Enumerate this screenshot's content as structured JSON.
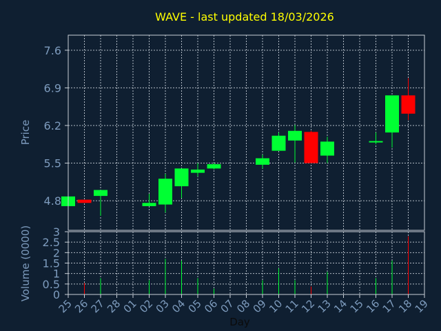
{
  "chart_data": {
    "type": "candlestick",
    "title": "WAVE - last updated 18/03/2026",
    "xlabel": "Day",
    "price_label": "Price",
    "volume_label": "Volume (0000)",
    "x_ticks": [
      "25",
      "26",
      "27",
      "28",
      "01",
      "02",
      "03",
      "04",
      "05",
      "06",
      "07",
      "08",
      "09",
      "10",
      "11",
      "12",
      "13",
      "14",
      "15",
      "16",
      "17",
      "18",
      "19"
    ],
    "price_ticks": [
      "4.8",
      "5.5",
      "6.2",
      "6.9",
      "7.6"
    ],
    "price_range": [
      4.25,
      7.88
    ],
    "volume_ticks": [
      "0",
      "0.5",
      "1",
      "1.5",
      "2",
      "2.5",
      "3"
    ],
    "volume_range": [
      0,
      3
    ],
    "grid": true,
    "colors": {
      "up": "#00ff33",
      "down": "#ff0000",
      "grid": "#d0d8e0",
      "axis": "#7d9bbd",
      "title": "#ffff00",
      "plot_bg": "#0f1f31"
    },
    "candles": [
      {
        "day": "25",
        "open": 4.7,
        "high": 4.9,
        "low": 4.7,
        "close": 4.88,
        "volume": 0.0
      },
      {
        "day": "26",
        "open": 4.82,
        "high": 4.82,
        "low": 4.76,
        "close": 4.76,
        "volume": 0.55
      },
      {
        "day": "27",
        "open": 4.89,
        "high": 5.0,
        "low": 4.52,
        "close": 5.0,
        "volume": 0.78
      },
      {
        "day": "02",
        "open": 4.7,
        "high": 4.93,
        "low": 4.7,
        "close": 4.76,
        "volume": 0.68
      },
      {
        "day": "03",
        "open": 4.73,
        "high": 5.3,
        "low": 4.58,
        "close": 5.21,
        "volume": 1.7
      },
      {
        "day": "04",
        "open": 5.07,
        "high": 5.4,
        "low": 4.85,
        "close": 5.4,
        "volume": 1.62
      },
      {
        "day": "05",
        "open": 5.32,
        "high": 5.5,
        "low": 5.25,
        "close": 5.38,
        "volume": 0.78
      },
      {
        "day": "06",
        "open": 5.4,
        "high": 5.5,
        "low": 5.38,
        "close": 5.48,
        "volume": 0.28
      },
      {
        "day": "09",
        "open": 5.47,
        "high": 5.66,
        "low": 5.4,
        "close": 5.59,
        "volume": 0.68
      },
      {
        "day": "10",
        "open": 5.73,
        "high": 6.07,
        "low": 5.73,
        "close": 6.01,
        "volume": 1.25
      },
      {
        "day": "11",
        "open": 5.92,
        "high": 6.21,
        "low": 5.51,
        "close": 6.1,
        "volume": 0.68
      },
      {
        "day": "12",
        "open": 6.08,
        "high": 6.1,
        "low": 5.5,
        "close": 5.5,
        "volume": 0.38
      },
      {
        "day": "13",
        "open": 5.64,
        "high": 5.99,
        "low": 5.5,
        "close": 5.9,
        "volume": 1.08
      },
      {
        "day": "16",
        "open": 5.9,
        "high": 6.07,
        "low": 5.85,
        "close": 5.91,
        "volume": 0.78
      },
      {
        "day": "17",
        "open": 6.07,
        "high": 6.76,
        "low": 5.79,
        "close": 6.76,
        "volume": 1.62
      },
      {
        "day": "18",
        "open": 6.76,
        "high": 7.08,
        "low": 6.3,
        "close": 6.42,
        "volume": 2.78
      }
    ]
  }
}
